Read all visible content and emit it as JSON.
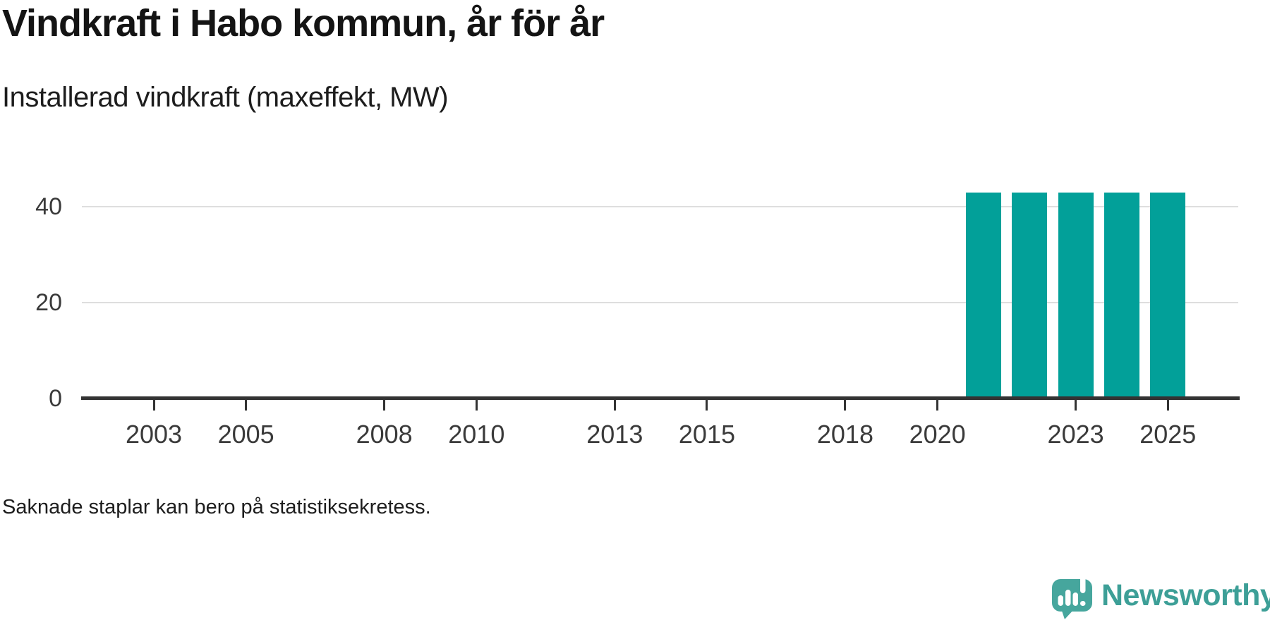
{
  "title": "Vindkraft i Habo kommun, år för år",
  "subtitle": "Installerad vindkraft (maxeffekt, MW)",
  "footnote": "Saknade staplar kan bero på statistiksekretess.",
  "branding": {
    "logo_text": "Newsworthy",
    "logo_icon": "newsworthy-speech-bubble-chart-icon"
  },
  "colors": {
    "bar": "#02a099",
    "grid": "#dedede",
    "axis": "#333333",
    "tick_label": "#3a3a3a",
    "logo_icon": "#46a69d",
    "logo_text": "#3d9f97"
  },
  "chart_data": {
    "type": "bar",
    "title": "Vindkraft i Habo kommun, år för år",
    "subtitle": "Installerad vindkraft (maxeffekt, MW)",
    "xlabel": "",
    "ylabel": "Installerad vindkraft (maxeffekt, MW)",
    "x": [
      2002,
      2003,
      2004,
      2005,
      2006,
      2007,
      2008,
      2009,
      2010,
      2011,
      2012,
      2013,
      2014,
      2015,
      2016,
      2017,
      2018,
      2019,
      2020,
      2021,
      2022,
      2023,
      2024,
      2025
    ],
    "values": [
      null,
      null,
      null,
      null,
      null,
      null,
      null,
      null,
      null,
      null,
      null,
      null,
      null,
      null,
      null,
      null,
      null,
      null,
      null,
      43,
      43,
      43,
      43,
      43
    ],
    "unit": "MW",
    "ylim": [
      0,
      43
    ],
    "yticks": [
      0,
      20,
      40
    ],
    "xticks": [
      2003,
      2005,
      2008,
      2010,
      2013,
      2015,
      2018,
      2020,
      2023,
      2025
    ],
    "grid": "horizontal",
    "legend": "none",
    "bar_color": "#02a099",
    "missing_note": "Saknade staplar kan bero på statistiksekretess."
  }
}
